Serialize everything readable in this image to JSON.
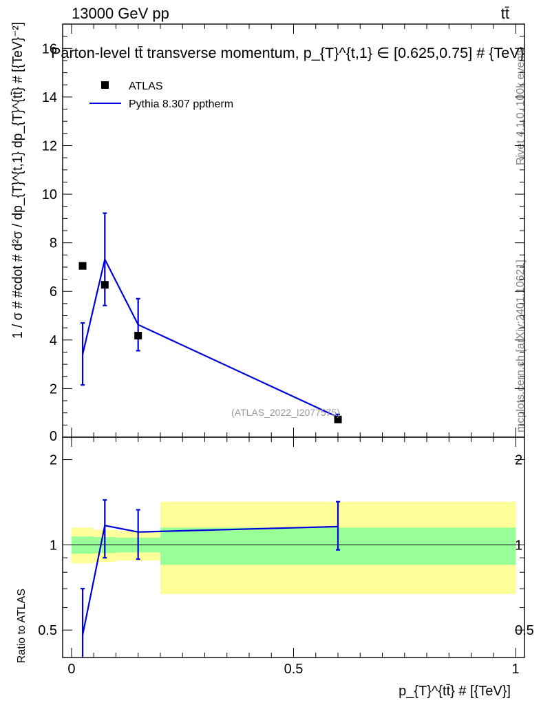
{
  "header": {
    "left": "13000 GeV pp",
    "right": "tt̄"
  },
  "side_labels": {
    "rivet": "Rivet 4.1.0,  100k events",
    "mcplots": "mcplots.cern.ch [arXiv:2401.10621]"
  },
  "chart_data": [
    {
      "type": "scatter",
      "panel": "main",
      "title": "Parton-level tt̄ transverse momentum, p_{T}^{t,1} ∈ [0.625,0.75] # {TeV}",
      "xlabel": "p_{T}^{tt̄} # [{TeV}]",
      "ylabel": "1 / σ # #cdot # d²σ / dp_{T}^{t,1} dp_{T}^{tt̄} # [{TeV}⁻²]",
      "xlim": [
        -0.02,
        1.02
      ],
      "ylim": [
        0,
        17
      ],
      "yticks": [
        2,
        4,
        6,
        8,
        10,
        12,
        14,
        16
      ],
      "legend": [
        "ATLAS",
        "Pythia 8.307 pptherm"
      ],
      "annotation": "(ATLAS_2022_I2077575)",
      "series": [
        {
          "name": "ATLAS",
          "style": "markers",
          "color": "#000000",
          "x": [
            0.025,
            0.075,
            0.15,
            0.6
          ],
          "y": [
            7.05,
            6.27,
            4.18,
            0.73
          ]
        },
        {
          "name": "Pythia 8.307 pptherm",
          "style": "line",
          "color": "#0000dd",
          "x": [
            0.025,
            0.075,
            0.15,
            0.6
          ],
          "y": [
            3.4,
            7.32,
            4.63,
            0.82
          ],
          "yerr_low": [
            1.25,
            1.9,
            1.07,
            0.12
          ],
          "yerr_high": [
            1.3,
            1.9,
            1.07,
            0.12
          ]
        }
      ]
    },
    {
      "type": "line",
      "panel": "ratio",
      "ylabel": "Ratio to ATLAS",
      "xlim": [
        -0.02,
        1.02
      ],
      "ylim": [
        0.4,
        2.4
      ],
      "yticks": [
        0.5,
        1,
        2
      ],
      "xticks": [
        0,
        0.5,
        1
      ],
      "reference": 1,
      "bands": {
        "bins": [
          [
            0,
            0.05
          ],
          [
            0.05,
            0.1
          ],
          [
            0.1,
            0.2
          ],
          [
            0.2,
            1.0
          ]
        ],
        "outer": [
          [
            0.86,
            1.15
          ],
          [
            0.87,
            1.13
          ],
          [
            0.88,
            1.12
          ],
          [
            0.67,
            1.42
          ]
        ],
        "inner": [
          [
            0.93,
            1.07
          ],
          [
            0.935,
            1.065
          ],
          [
            0.94,
            1.06
          ],
          [
            0.85,
            1.15
          ]
        ],
        "outer_color": "#ffff99",
        "inner_color": "#99ff99"
      },
      "series": [
        {
          "name": "Pythia 8.307 pptherm",
          "color": "#0000dd",
          "x": [
            0.025,
            0.075,
            0.15,
            0.6
          ],
          "y": [
            0.48,
            1.17,
            1.11,
            1.16
          ],
          "yerr_low": [
            0.12,
            0.27,
            0.22,
            0.2
          ],
          "yerr_high": [
            0.22,
            0.27,
            0.22,
            0.26
          ]
        }
      ]
    }
  ]
}
